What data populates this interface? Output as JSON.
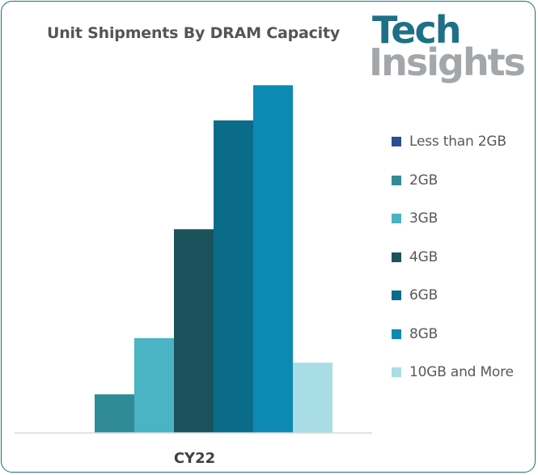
{
  "brand": {
    "name_line1": "Tech",
    "name_line2": "Insights",
    "color_primary": "#1e6f88",
    "color_secondary": "#a3a7aa"
  },
  "chart_data": {
    "type": "bar",
    "title": "Unit Shipments By DRAM Capacity",
    "categories": [
      "CY22"
    ],
    "xlabel": "",
    "ylabel": "",
    "ylim": [
      0,
      100
    ],
    "grid": false,
    "legend_position": "right",
    "series": [
      {
        "name": "Less than 2GB",
        "values": [
          0
        ],
        "color": "#2e4d8f"
      },
      {
        "name": "2GB",
        "values": [
          11
        ],
        "color": "#2f8c96"
      },
      {
        "name": "3GB",
        "values": [
          27
        ],
        "color": "#4ab3c4"
      },
      {
        "name": "4GB",
        "values": [
          58
        ],
        "color": "#1c525b"
      },
      {
        "name": "6GB",
        "values": [
          89
        ],
        "color": "#0b6c8a"
      },
      {
        "name": "8GB",
        "values": [
          99
        ],
        "color": "#0c8ab3"
      },
      {
        "name": "10GB and More",
        "values": [
          20
        ],
        "color": "#a9dde5"
      }
    ]
  }
}
